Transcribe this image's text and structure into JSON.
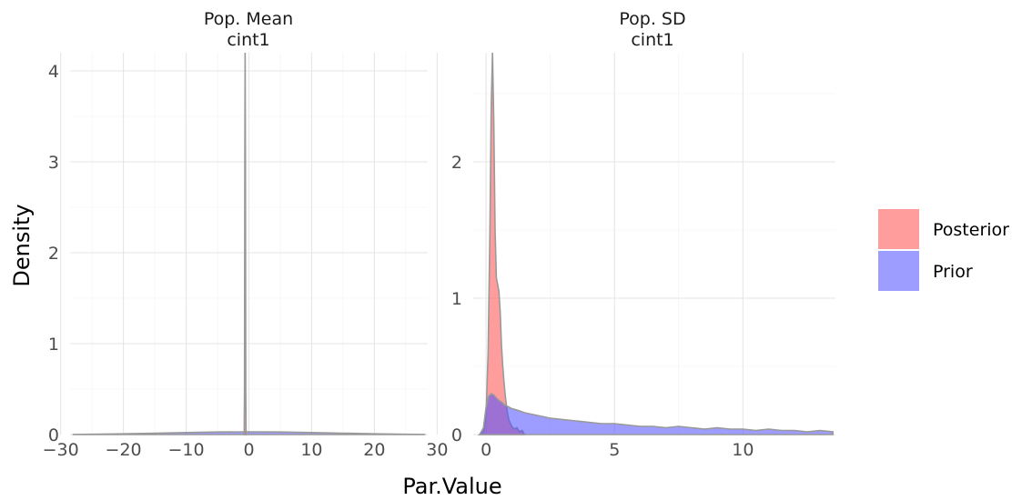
{
  "chart_data": [
    {
      "type": "area",
      "facet_title": [
        "Pop. Mean",
        "cint1"
      ],
      "xlim": [
        -28.5,
        28.5
      ],
      "ylim": [
        0,
        4.2
      ],
      "x_ticks": [
        -30,
        -20,
        -10,
        0,
        10,
        20,
        30
      ],
      "x_tick_labels": [
        "−30",
        "−20",
        "−10",
        "0",
        "10",
        "20",
        "30"
      ],
      "y_ticks": [
        0,
        1,
        2,
        3,
        4
      ],
      "y_tick_labels": [
        "0",
        "1",
        "2",
        "3",
        "4"
      ],
      "series": [
        {
          "name": "Prior",
          "x": [
            -28,
            -25,
            -20,
            -15,
            -10,
            -5,
            0,
            5,
            10,
            15,
            20,
            25,
            28
          ],
          "y": [
            0.001,
            0.003,
            0.008,
            0.015,
            0.022,
            0.028,
            0.03,
            0.028,
            0.022,
            0.015,
            0.008,
            0.003,
            0.001
          ]
        },
        {
          "name": "Posterior",
          "x": [
            -0.75,
            -0.7,
            -0.65,
            -0.6,
            -0.55,
            -0.5,
            -0.45
          ],
          "y": [
            0,
            0.5,
            3.0,
            4.2,
            3.0,
            0.5,
            0
          ]
        }
      ]
    },
    {
      "type": "area",
      "facet_title": [
        "Pop. SD",
        "cint1"
      ],
      "xlim": [
        -0.5,
        13.6
      ],
      "ylim": [
        0,
        2.8
      ],
      "x_ticks": [
        0,
        5,
        10
      ],
      "x_tick_labels": [
        "0",
        "5",
        "10"
      ],
      "y_ticks": [
        0,
        1,
        2
      ],
      "y_tick_labels": [
        "0",
        "1",
        "2"
      ],
      "series": [
        {
          "name": "Posterior",
          "x": [
            -0.25,
            -0.1,
            0.0,
            0.08,
            0.15,
            0.2,
            0.25,
            0.3,
            0.35,
            0.4,
            0.45,
            0.5,
            0.55,
            0.6,
            0.65,
            0.7,
            0.75,
            0.8,
            0.85,
            0.9,
            0.95,
            1.0,
            1.1,
            1.2,
            1.3,
            1.4,
            1.5
          ],
          "y": [
            0.0,
            0.02,
            0.15,
            0.6,
            1.5,
            2.4,
            2.8,
            2.3,
            1.5,
            1.15,
            1.1,
            1.05,
            0.9,
            0.65,
            0.5,
            0.38,
            0.28,
            0.2,
            0.14,
            0.1,
            0.08,
            0.06,
            0.04,
            0.05,
            0.02,
            0.03,
            0.0
          ]
        },
        {
          "name": "Prior",
          "x": [
            -0.25,
            -0.1,
            0.0,
            0.1,
            0.2,
            0.3,
            0.4,
            0.5,
            0.6,
            0.7,
            0.8,
            0.9,
            1.0,
            1.2,
            1.5,
            2.0,
            2.5,
            3.0,
            3.5,
            4.0,
            4.5,
            5.0,
            5.5,
            6.0,
            6.5,
            7.0,
            7.5,
            8.0,
            8.5,
            9.0,
            9.5,
            10.0,
            10.5,
            11.0,
            11.5,
            12.0,
            12.5,
            13.0,
            13.5
          ],
          "y": [
            0.0,
            0.05,
            0.2,
            0.28,
            0.3,
            0.29,
            0.27,
            0.25,
            0.24,
            0.22,
            0.21,
            0.2,
            0.19,
            0.18,
            0.16,
            0.14,
            0.12,
            0.11,
            0.1,
            0.09,
            0.08,
            0.08,
            0.07,
            0.06,
            0.06,
            0.05,
            0.06,
            0.05,
            0.04,
            0.05,
            0.04,
            0.04,
            0.03,
            0.04,
            0.03,
            0.03,
            0.02,
            0.03,
            0.02
          ]
        }
      ]
    }
  ],
  "xlabel": "Par.Value",
  "ylabel": "Density",
  "legend": {
    "placement": "right",
    "items": [
      {
        "label": "Posterior",
        "color": "#ff4d4d"
      },
      {
        "label": "Prior",
        "color": "#4d4dff"
      }
    ]
  },
  "colors": {
    "posterior_fill": "#ff4d4d",
    "prior_fill": "#4d4dff",
    "outline": "#999999"
  }
}
